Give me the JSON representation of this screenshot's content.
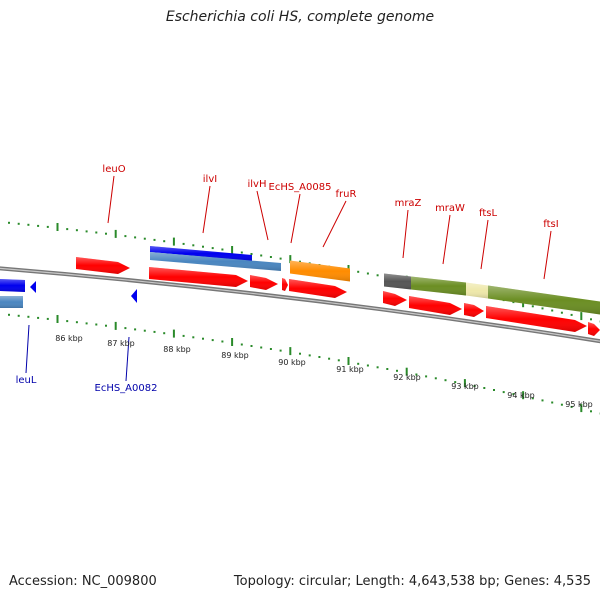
{
  "title": "Escherichia coli HS, complete genome",
  "accession": "Accession: NC_009800",
  "topology": "Topology: circular; Length: 4,643,538 bp; Genes: 4,535",
  "colors": {
    "forward_label": "#cc0000",
    "reverse_label": "#0000aa",
    "tick": "#2a8a2a",
    "backbone": "#808080",
    "cds": "#ff0000",
    "blue_feature": "#0000ee",
    "steel_feature": "#4a86c0",
    "orange_feature": "#ff8c00",
    "olive_feature": "#6b8e23",
    "gray_feature": "#555555",
    "yellow_feature": "#eee8aa"
  },
  "forward_genes": [
    "leuO",
    "ilvI",
    "ilvH",
    "EcHS_A0085",
    "fruR",
    "mraZ",
    "mraW",
    "ftsL",
    "ftsI"
  ],
  "reverse_genes": [
    "leuL",
    "EcHS_A0082"
  ],
  "scale_labels": [
    "86 kbp",
    "87 kbp",
    "88 kbp",
    "89 kbp",
    "90 kbp",
    "91 kbp",
    "92 kbp",
    "93 kbp",
    "94 kbp",
    "95 kbp"
  ]
}
